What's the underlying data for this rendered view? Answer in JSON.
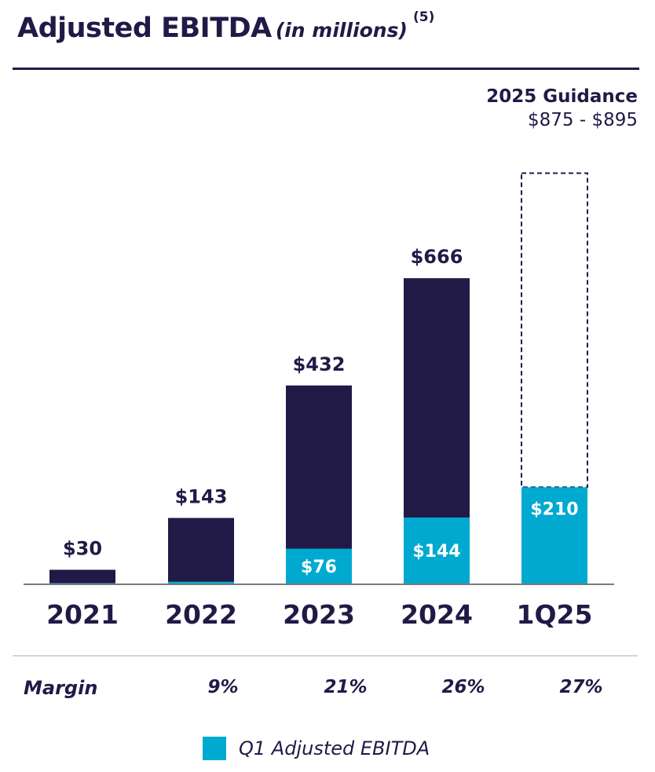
{
  "title": {
    "main": "Adjusted EBITDA",
    "sub": "(in millions)",
    "note": "(5)"
  },
  "guidance": {
    "title": "2025 Guidance",
    "range": "$875 - $895"
  },
  "colors": {
    "annual": "#211a47",
    "q1": "#00a9cf",
    "axis": "#7a7a7a"
  },
  "chart_data": {
    "type": "bar",
    "categories": [
      "2021",
      "2022",
      "2023",
      "2024",
      "1Q25"
    ],
    "series": [
      {
        "name": "Q1 Adjusted EBITDA",
        "values": [
          1,
          4,
          76,
          144,
          210
        ],
        "labels": [
          "",
          "",
          "$76",
          "$144",
          "$210"
        ]
      },
      {
        "values": [
          30,
          143,
          432,
          666,
          null
        ],
        "labels": [
          "$30",
          "$143",
          "$432",
          "$666",
          ""
        ]
      }
    ],
    "guidance": {
      "category": "1Q25",
      "low": 875,
      "high": 895,
      "style": "dashed-outline"
    },
    "ylim": [
      0,
      925
    ],
    "xlabel": "",
    "ylabel": "",
    "grid": false,
    "legend_position": "bottom"
  },
  "margin": {
    "label": "Margin",
    "values": [
      {
        "category": "2022",
        "text": "9%"
      },
      {
        "category": "2023",
        "text": "21%"
      },
      {
        "category": "2024",
        "text": "26%"
      },
      {
        "category": "1Q25",
        "text": "27%"
      }
    ]
  },
  "legend": {
    "items": [
      {
        "label": "Q1 Adjusted EBITDA"
      }
    ]
  }
}
